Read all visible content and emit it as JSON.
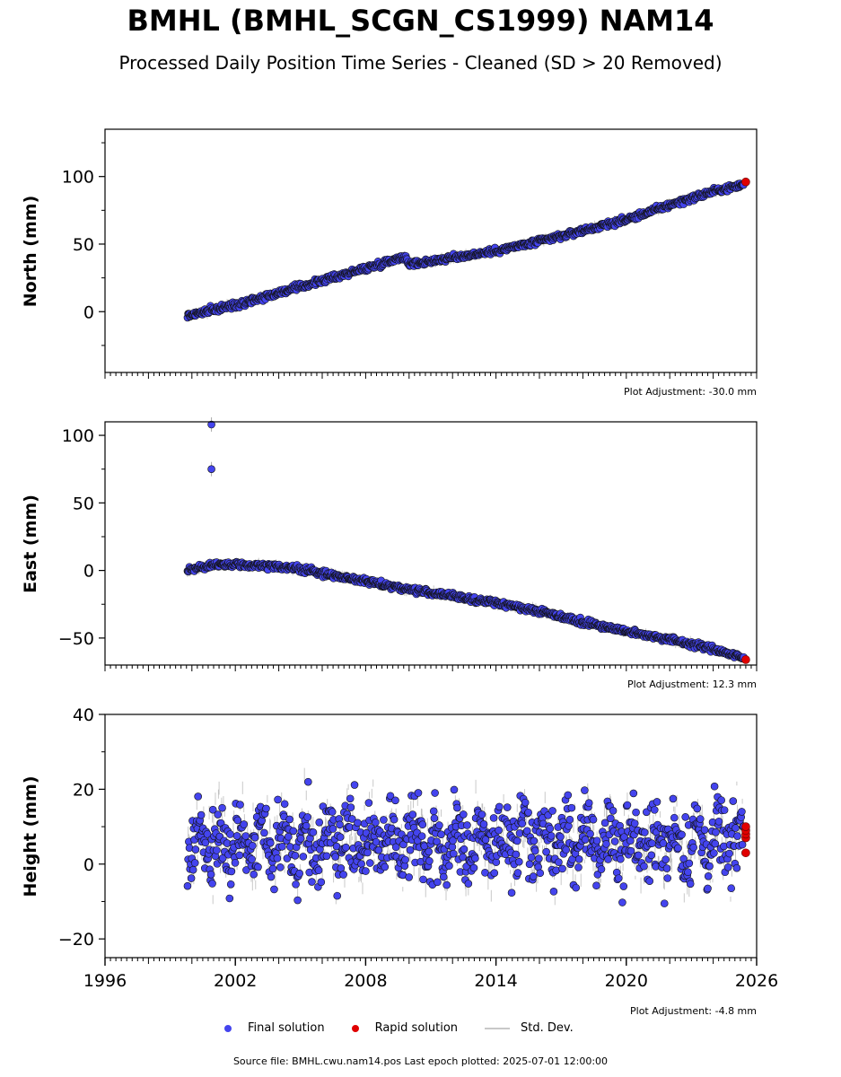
{
  "header": {
    "title": "BMHL (BMHL_SCGN_CS1999) NAM14",
    "subtitle": "Processed Daily Position Time Series - Cleaned (SD > 20 Removed)"
  },
  "legend": {
    "final": "Final solution",
    "rapid": "Rapid solution",
    "std": "Std. Dev."
  },
  "footer": "Source file: BMHL.cwu.nam14.pos  Last epoch plotted: 2025-07-01 12:00:00",
  "colors": {
    "final": "#4444ee",
    "rapid": "#e00000",
    "std": "#b0b0b0"
  },
  "chart_data": [
    {
      "type": "scatter",
      "ylabel": "North (mm)",
      "adjustment": "Plot Adjustment: -30.0 mm",
      "xlim": [
        1996,
        2026
      ],
      "ylim": [
        -45,
        135
      ],
      "yticks": [
        0,
        50,
        100
      ],
      "grid": false,
      "series": [
        {
          "name": "Final solution",
          "x": [
            1999.8,
            2002,
            2004,
            2006,
            2008,
            2009.8,
            2010.0,
            2012,
            2014,
            2016,
            2018,
            2020,
            2022,
            2024,
            2025.4
          ],
          "y": [
            -3,
            5,
            14,
            23,
            32,
            41,
            35,
            40,
            45,
            52,
            60,
            68,
            79,
            89,
            94
          ]
        },
        {
          "name": "Rapid solution",
          "x": [
            2025.5
          ],
          "y": [
            96
          ]
        }
      ]
    },
    {
      "type": "scatter",
      "ylabel": "East (mm)",
      "adjustment": "Plot Adjustment: 12.3 mm",
      "xlim": [
        1996,
        2026
      ],
      "ylim": [
        -70,
        110
      ],
      "yticks": [
        -50,
        0,
        50,
        100
      ],
      "grid": false,
      "outliers": [
        {
          "x": 2000.9,
          "y": 108
        },
        {
          "x": 2000.9,
          "y": 75
        }
      ],
      "series": [
        {
          "name": "Final solution",
          "x": [
            1999.8,
            2001,
            2002,
            2004,
            2005,
            2006,
            2008,
            2010,
            2012,
            2014,
            2016,
            2018,
            2020,
            2022,
            2024,
            2025.4
          ],
          "y": [
            0,
            4,
            4,
            3,
            1,
            -2,
            -8,
            -14,
            -19,
            -24,
            -30,
            -38,
            -45,
            -51,
            -58,
            -65
          ]
        },
        {
          "name": "Rapid solution",
          "x": [
            2025.5
          ],
          "y": [
            -66
          ]
        }
      ]
    },
    {
      "type": "scatter",
      "ylabel": "Height (mm)",
      "adjustment": "Plot Adjustment: -4.8 mm",
      "xlim": [
        1996,
        2026
      ],
      "ylim": [
        -25,
        40
      ],
      "yticks": [
        -20,
        0,
        20,
        40
      ],
      "xticks": [
        1996,
        2002,
        2008,
        2014,
        2020,
        2026
      ],
      "grid": false,
      "mean": 6,
      "spread": 10,
      "series": [
        {
          "name": "Final solution",
          "x": [
            1999.8,
            2025.4
          ],
          "y": [
            6,
            6
          ]
        },
        {
          "name": "Rapid solution",
          "x": [
            2025.5
          ],
          "y": [
            8
          ]
        }
      ]
    }
  ]
}
